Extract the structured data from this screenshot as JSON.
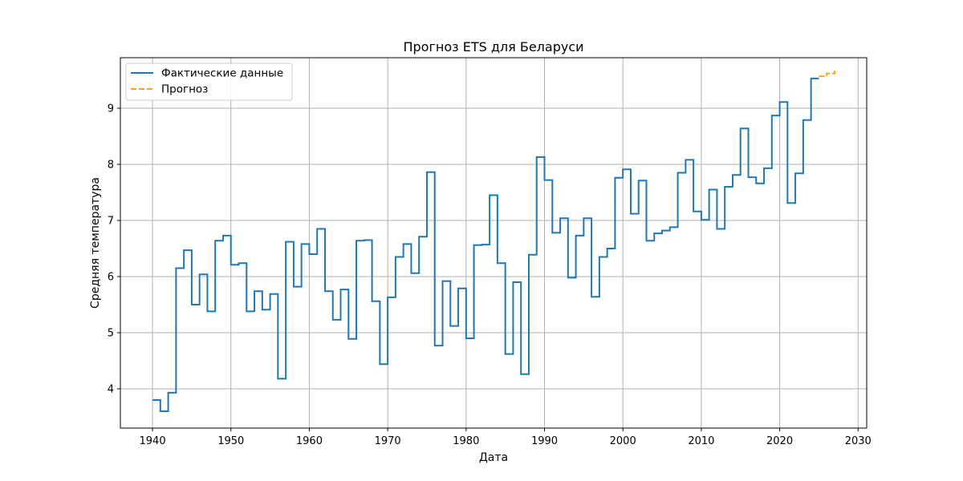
{
  "chart_data": {
    "type": "line",
    "title": "Прогноз ETS для Беларуси",
    "xlabel": "Дата",
    "ylabel": "Средняя температура",
    "xlim": [
      1935.9,
      2031.1
    ],
    "ylim": [
      3.3,
      9.9
    ],
    "x_ticks": [
      1940,
      1950,
      1960,
      1970,
      1980,
      1990,
      2000,
      2010,
      2020,
      2030
    ],
    "y_ticks": [
      4,
      5,
      6,
      7,
      8,
      9
    ],
    "grid": true,
    "legend_position": "top-left",
    "series": [
      {
        "name": "Фактические данные",
        "color": "#1f77b4",
        "style": "solid",
        "step": "post",
        "x": [
          1940,
          1941,
          1942,
          1943,
          1944,
          1945,
          1946,
          1947,
          1948,
          1949,
          1950,
          1951,
          1952,
          1953,
          1954,
          1955,
          1956,
          1957,
          1958,
          1959,
          1960,
          1961,
          1962,
          1963,
          1964,
          1965,
          1966,
          1967,
          1968,
          1969,
          1970,
          1971,
          1972,
          1973,
          1974,
          1975,
          1976,
          1977,
          1978,
          1979,
          1980,
          1981,
          1982,
          1983,
          1984,
          1985,
          1986,
          1987,
          1988,
          1989,
          1990,
          1991,
          1992,
          1993,
          1994,
          1995,
          1996,
          1997,
          1998,
          1999,
          2000,
          2001,
          2002,
          2003,
          2004,
          2005,
          2006,
          2007,
          2008,
          2009,
          2010,
          2011,
          2012,
          2013,
          2014,
          2015,
          2016,
          2017,
          2018,
          2019,
          2020,
          2021,
          2022,
          2023,
          2024,
          2025
        ],
        "y": [
          3.8,
          3.6,
          3.93,
          6.15,
          6.47,
          5.5,
          6.04,
          5.38,
          6.64,
          6.73,
          6.21,
          6.24,
          5.38,
          5.74,
          5.41,
          5.69,
          4.18,
          6.62,
          5.82,
          6.58,
          6.4,
          6.85,
          5.74,
          5.23,
          5.77,
          4.89,
          6.64,
          6.65,
          5.56,
          4.44,
          5.63,
          6.35,
          6.58,
          6.06,
          6.71,
          7.86,
          4.77,
          5.92,
          5.12,
          5.79,
          4.9,
          6.56,
          6.57,
          7.45,
          6.24,
          4.62,
          5.9,
          4.26,
          6.39,
          8.13,
          7.72,
          6.78,
          7.04,
          5.98,
          6.73,
          7.04,
          5.64,
          6.35,
          6.5,
          7.76,
          7.91,
          7.12,
          7.71,
          6.64,
          6.77,
          6.82,
          6.88,
          7.85,
          8.08,
          7.16,
          7.01,
          7.55,
          6.85,
          7.6,
          7.81,
          8.64,
          7.77,
          7.66,
          7.93,
          8.87,
          9.11,
          7.31,
          7.84,
          8.79,
          9.53,
          9.53
        ]
      },
      {
        "name": "Прогноз",
        "color": "#ffa500",
        "style": "dashed",
        "step": "post",
        "x": [
          2025,
          2026,
          2027
        ],
        "y": [
          9.57,
          9.62,
          9.67
        ]
      }
    ]
  }
}
